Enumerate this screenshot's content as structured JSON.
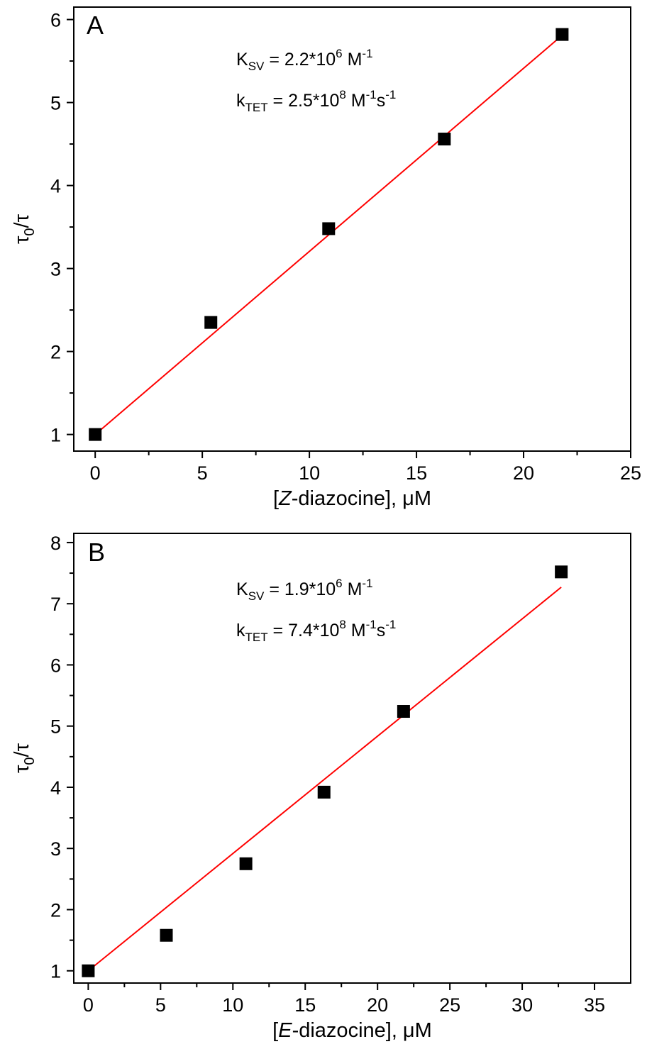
{
  "chart_data": [
    {
      "type": "scatter",
      "panel_label": "A",
      "xlabel": {
        "open": "[",
        "italic": "Z",
        "rest": "-diazocine], μM"
      },
      "ylabel": {
        "base": "τ",
        "sub": "0",
        "tail": "/τ"
      },
      "xlim": [
        -1,
        25
      ],
      "ylim": [
        0.8,
        6.15
      ],
      "xticks": [
        0,
        5,
        10,
        15,
        20,
        25
      ],
      "yticks": [
        1,
        2,
        3,
        4,
        5,
        6
      ],
      "grid": false,
      "legend": "none",
      "series": [
        {
          "x": [
            0,
            5.4,
            10.9,
            16.3,
            21.8
          ],
          "y": [
            1.0,
            2.35,
            3.48,
            4.56,
            5.82
          ],
          "marker": "square",
          "color": "#000000"
        }
      ],
      "fit_line": {
        "x": [
          0,
          21.8
        ],
        "y": [
          1.0,
          5.81
        ],
        "color": "#ff0000"
      },
      "annotations": [
        {
          "base": "K",
          "sub": "SV",
          "mid": " = 2.2*10",
          "sup1": "6",
          "mid2": " M",
          "sup2": "-1",
          "tail": "",
          "sup3": ""
        },
        {
          "base": "k",
          "sub": "TET",
          "mid": " = 2.5*10",
          "sup1": "8",
          "mid2": " M",
          "sup2": "-1",
          "tail": "s",
          "sup3": "-1"
        }
      ]
    },
    {
      "type": "scatter",
      "panel_label": "B",
      "xlabel": {
        "open": "[",
        "italic": "E",
        "rest": "-diazocine], μM"
      },
      "ylabel": {
        "base": "τ",
        "sub": "0",
        "tail": "/τ"
      },
      "xlim": [
        -1,
        37.5
      ],
      "ylim": [
        0.8,
        8.15
      ],
      "xticks": [
        0,
        5,
        10,
        15,
        20,
        25,
        30,
        35
      ],
      "yticks": [
        1,
        2,
        3,
        4,
        5,
        6,
        7,
        8
      ],
      "grid": false,
      "legend": "none",
      "series": [
        {
          "x": [
            0,
            5.4,
            10.9,
            16.3,
            21.8,
            32.7
          ],
          "y": [
            1.0,
            1.58,
            2.75,
            3.92,
            5.24,
            7.52
          ],
          "marker": "square",
          "color": "#000000"
        }
      ],
      "fit_line": {
        "x": [
          0,
          32.7
        ],
        "y": [
          1.0,
          7.27
        ],
        "color": "#ff0000"
      },
      "annotations": [
        {
          "base": "K",
          "sub": "SV",
          "mid": " = 1.9*10",
          "sup1": "6",
          "mid2": " M",
          "sup2": "-1",
          "tail": "",
          "sup3": ""
        },
        {
          "base": "k",
          "sub": "TET",
          "mid": " = 7.4*10",
          "sup1": "8",
          "mid2": " M",
          "sup2": "-1",
          "tail": "s",
          "sup3": "-1"
        }
      ]
    }
  ]
}
